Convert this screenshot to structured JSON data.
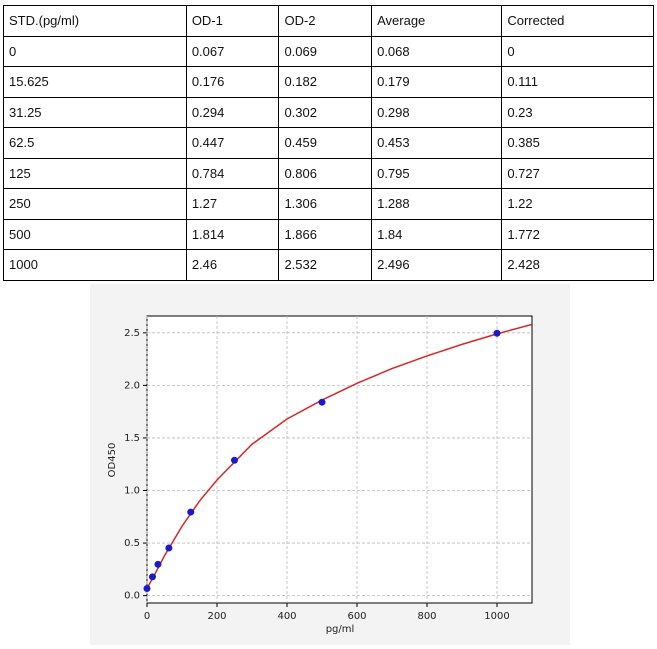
{
  "table": {
    "header": [
      "STD.(pg/ml)",
      "OD-1",
      "OD-2",
      "Average",
      "Corrected"
    ],
    "rows": [
      [
        "0",
        "0.067",
        "0.069",
        "0.068",
        "0"
      ],
      [
        "15.625",
        "0.176",
        "0.182",
        "0.179",
        "0.111"
      ],
      [
        "31.25",
        "0.294",
        "0.302",
        "0.298",
        "0.23"
      ],
      [
        "62.5",
        "0.447",
        "0.459",
        "0.453",
        "0.385"
      ],
      [
        "125",
        "0.784",
        "0.806",
        "0.795",
        "0.727"
      ],
      [
        "250",
        "1.27",
        "1.306",
        "1.288",
        "1.22"
      ],
      [
        "500",
        "1.814",
        "1.866",
        "1.84",
        "1.772"
      ],
      [
        "1000",
        "2.46",
        "2.532",
        "2.496",
        "2.428"
      ]
    ]
  },
  "chart_data": {
    "type": "scatter",
    "x_label": "pg/ml",
    "y_label": "OD450",
    "xlim": [
      0,
      1100
    ],
    "ylim": [
      -0.07,
      2.66
    ],
    "xticks": [
      0,
      200,
      400,
      600,
      800,
      1000
    ],
    "yticks": [
      {
        "value": 0,
        "label": "0.0"
      },
      0.5,
      {
        "value": 1,
        "label": "1.0"
      },
      1.5,
      {
        "value": 2,
        "label": "2.0"
      },
      2.5
    ],
    "grid": true,
    "points": {
      "color": "#1a1acc",
      "x": [
        0,
        15.625,
        31.25,
        62.5,
        125,
        250,
        500,
        1000
      ],
      "values": [
        0.068,
        0.179,
        0.298,
        0.453,
        0.795,
        1.288,
        1.84,
        2.496
      ]
    },
    "curve": {
      "color": "#d62728",
      "x": [
        0,
        25,
        50,
        100,
        150,
        200,
        300,
        400,
        500,
        600,
        700,
        800,
        900,
        1000,
        1100
      ],
      "values": [
        0.068,
        0.22,
        0.38,
        0.66,
        0.9,
        1.1,
        1.44,
        1.68,
        1.86,
        2.02,
        2.16,
        2.28,
        2.39,
        2.49,
        2.58
      ]
    }
  }
}
